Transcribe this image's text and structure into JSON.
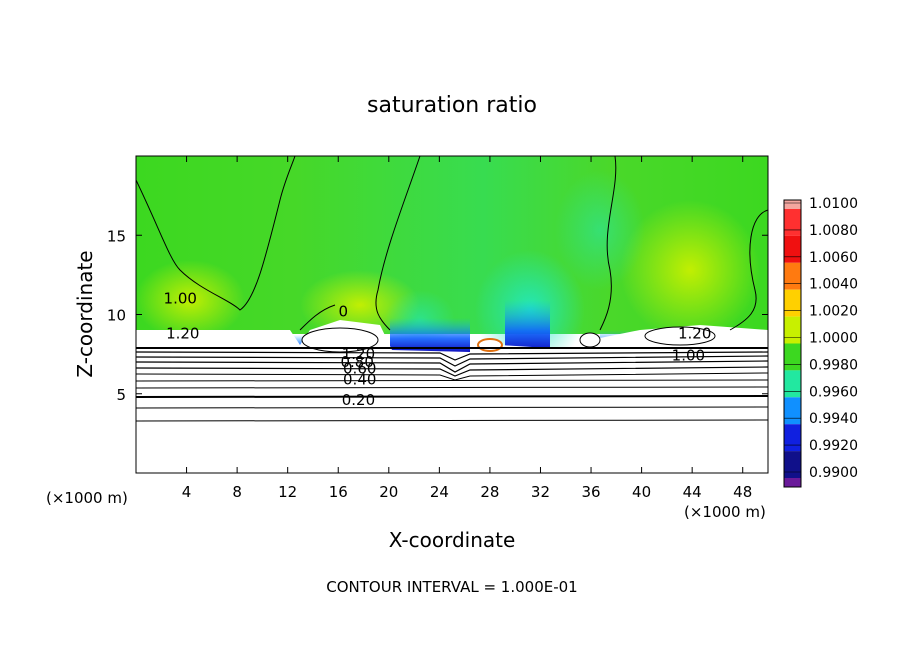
{
  "chart_data": {
    "type": "heatmap",
    "title": "saturation ratio",
    "xlabel": "X-coordinate",
    "ylabel": "Z-coordinate",
    "x_unit_label": "(×1000 m)",
    "y_unit_label": "(×1000 m)",
    "footer": "CONTOUR INTERVAL = 1.000E-01",
    "xlim": [
      0,
      50
    ],
    "ylim": [
      0,
      20
    ],
    "x_ticks": [
      4,
      8,
      12,
      16,
      20,
      24,
      28,
      32,
      36,
      40,
      44,
      48
    ],
    "y_ticks": [
      5,
      10,
      15
    ],
    "colorbar": {
      "labels": [
        "1.0100",
        "1.0080",
        "1.0060",
        "1.0040",
        "1.0020",
        "1.0000",
        "0.9980",
        "0.9960",
        "0.9940",
        "0.9920",
        "0.9900"
      ],
      "colors": [
        "#f4a6a0",
        "#ff3030",
        "#f01010",
        "#ff7a10",
        "#ffd000",
        "#c8f000",
        "#3cd820",
        "#22e8a0",
        "#1090ff",
        "#1020e0",
        "#10108a",
        "#6a1a9a"
      ]
    },
    "contour_labels": [
      {
        "text": "1.00",
        "x": 3.5,
        "y": 11.0
      },
      {
        "text": "1.20",
        "x": 3.7,
        "y": 8.8
      },
      {
        "text": "0",
        "x": 16.4,
        "y": 10.2
      },
      {
        "text": "1.20",
        "x": 44.2,
        "y": 8.8
      },
      {
        "text": "1.00",
        "x": 43.7,
        "y": 7.4
      },
      {
        "text": "1.20",
        "x": 17.6,
        "y": 7.5
      },
      {
        "text": "0.80",
        "x": 17.5,
        "y": 7.0
      },
      {
        "text": "0.60",
        "x": 17.7,
        "y": 6.6
      },
      {
        "text": "0.40",
        "x": 17.7,
        "y": 5.9
      },
      {
        "text": "0.20",
        "x": 17.6,
        "y": 4.6
      }
    ],
    "grid": false
  }
}
